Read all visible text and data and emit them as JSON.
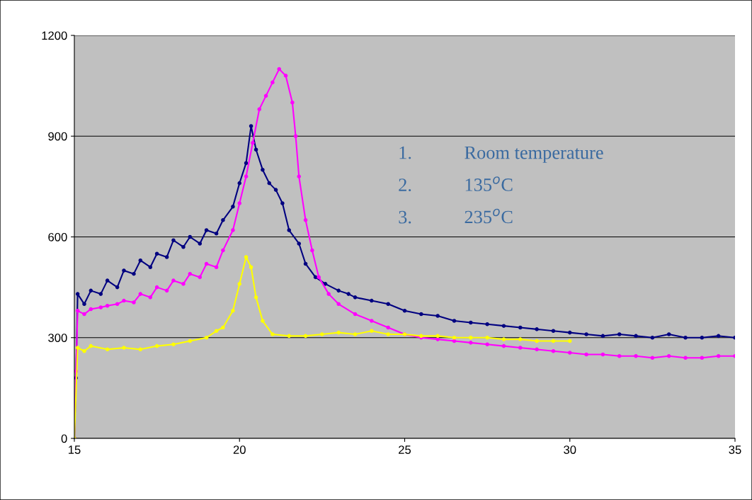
{
  "chart_data": {
    "type": "line",
    "xlim": [
      15,
      35
    ],
    "xticks": [
      15,
      20,
      25,
      30,
      35
    ],
    "ylim": [
      0,
      1200
    ],
    "yticks": [
      0,
      300,
      600,
      900,
      1200
    ],
    "grid": "y",
    "marker": "circle",
    "line_style": "solid",
    "annotations": [
      "1.",
      "Room temperature",
      "2.",
      "135$^{o}$C",
      "3.",
      "235$^{o}$C"
    ],
    "series": [
      {
        "color": "#000080",
        "x": [
          15.0,
          15.05,
          15.1,
          15.3,
          15.5,
          15.8,
          16.0,
          16.3,
          16.5,
          16.8,
          17.0,
          17.3,
          17.5,
          17.8,
          18.0,
          18.3,
          18.5,
          18.8,
          19.0,
          19.3,
          19.5,
          19.8,
          20.0,
          20.2,
          20.35,
          20.5,
          20.7,
          20.9,
          21.1,
          21.3,
          21.5,
          21.8,
          22.0,
          22.3,
          22.6,
          23.0,
          23.3,
          23.5,
          24.0,
          24.5,
          25.0,
          25.5,
          26.0,
          26.5,
          27.0,
          27.5,
          28.0,
          28.5,
          29.0,
          29.5,
          30.0,
          30.5,
          31.0,
          31.5,
          32.0,
          32.5,
          33.0,
          33.5,
          34.0,
          34.5,
          35.0
        ],
        "values": [
          0,
          180,
          430,
          400,
          440,
          430,
          470,
          450,
          500,
          490,
          530,
          510,
          550,
          540,
          590,
          570,
          600,
          580,
          620,
          610,
          650,
          690,
          760,
          820,
          930,
          860,
          800,
          760,
          740,
          700,
          620,
          580,
          520,
          480,
          460,
          440,
          430,
          420,
          410,
          400,
          380,
          370,
          365,
          350,
          345,
          340,
          335,
          330,
          325,
          320,
          315,
          310,
          305,
          310,
          305,
          300,
          310,
          300,
          300,
          305,
          300
        ]
      },
      {
        "color": "#ff00ff",
        "x": [
          15.0,
          15.05,
          15.1,
          15.3,
          15.5,
          15.8,
          16.0,
          16.3,
          16.5,
          16.8,
          17.0,
          17.3,
          17.5,
          17.8,
          18.0,
          18.3,
          18.5,
          18.8,
          19.0,
          19.3,
          19.5,
          19.8,
          20.0,
          20.2,
          20.4,
          20.6,
          20.8,
          21.0,
          21.2,
          21.4,
          21.6,
          21.7,
          21.8,
          22.0,
          22.2,
          22.4,
          22.7,
          23.0,
          23.5,
          24.0,
          24.5,
          25.0,
          25.5,
          26.0,
          26.5,
          27.0,
          27.5,
          28.0,
          28.5,
          29.0,
          29.5,
          30.0,
          30.5,
          31.0,
          31.5,
          32.0,
          32.5,
          33.0,
          33.5,
          34.0,
          34.5,
          35.0
        ],
        "values": [
          0,
          200,
          380,
          370,
          385,
          390,
          395,
          400,
          410,
          405,
          430,
          420,
          450,
          440,
          470,
          460,
          490,
          480,
          520,
          510,
          560,
          620,
          700,
          780,
          880,
          980,
          1020,
          1060,
          1100,
          1080,
          1000,
          900,
          780,
          650,
          560,
          480,
          430,
          400,
          370,
          350,
          330,
          310,
          300,
          295,
          290,
          285,
          280,
          275,
          270,
          265,
          260,
          255,
          250,
          250,
          245,
          245,
          240,
          245,
          240,
          240,
          245,
          245
        ]
      },
      {
        "color": "#ffff00",
        "x": [
          15.0,
          15.1,
          15.3,
          15.5,
          16.0,
          16.5,
          17.0,
          17.5,
          18.0,
          18.5,
          19.0,
          19.3,
          19.5,
          19.8,
          20.0,
          20.2,
          20.35,
          20.5,
          20.7,
          21.0,
          21.5,
          22.0,
          22.5,
          23.0,
          23.5,
          24.0,
          24.5,
          25.0,
          25.5,
          26.0,
          26.5,
          27.0,
          27.5,
          28.0,
          28.5,
          29.0,
          29.5,
          30.0
        ],
        "values": [
          0,
          270,
          260,
          275,
          265,
          270,
          265,
          275,
          280,
          290,
          300,
          320,
          330,
          380,
          460,
          540,
          510,
          420,
          350,
          310,
          305,
          305,
          310,
          315,
          310,
          320,
          310,
          310,
          305,
          305,
          300,
          300,
          300,
          295,
          295,
          290,
          290,
          290
        ]
      }
    ]
  }
}
